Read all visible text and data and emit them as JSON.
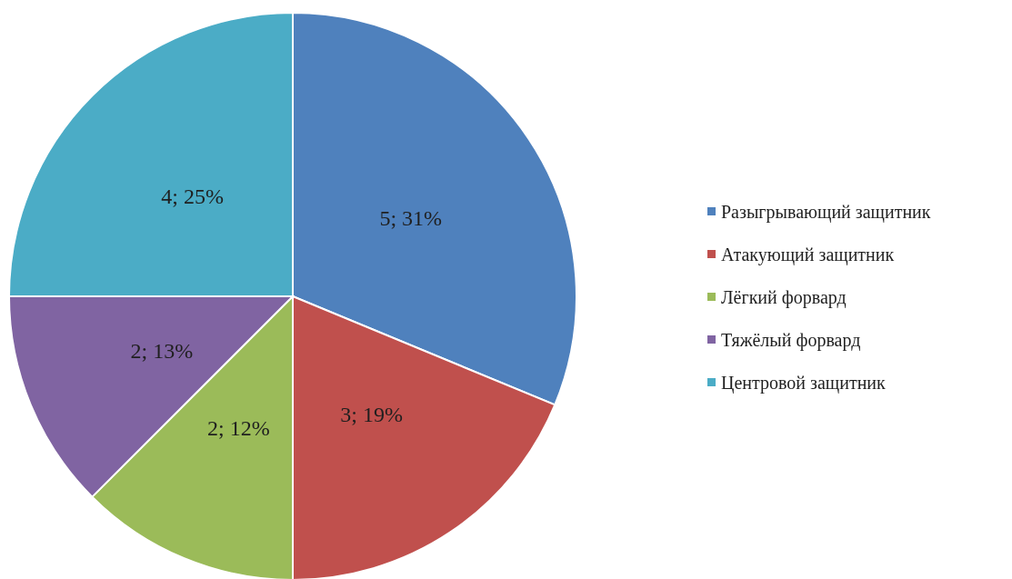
{
  "chart_data": {
    "type": "pie",
    "categories": [
      "Разыгрывающий защитник",
      "Атакующий защитник",
      "Лёгкий форвард",
      "Тяжёлый форвард",
      "Центровой защитник"
    ],
    "values": [
      5,
      3,
      2,
      2,
      4
    ],
    "colors": [
      "#4f81bd",
      "#c0504d",
      "#9bbb59",
      "#8064a2",
      "#4bacc6"
    ],
    "value_labels": [
      "5; 31%",
      "3; 19%",
      "2; 12%",
      "2; 13%",
      "4; 25%"
    ],
    "legend": "right"
  }
}
